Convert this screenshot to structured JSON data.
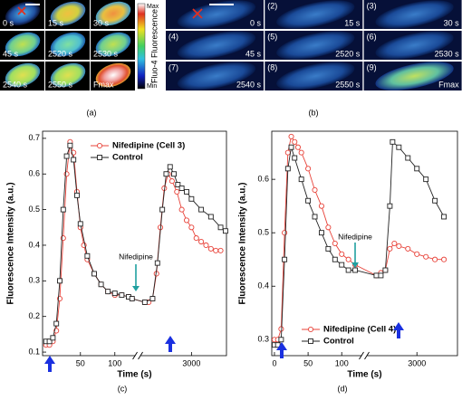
{
  "panel_a": {
    "label": "(a)",
    "frames": [
      "0 s",
      "15 s",
      "30 s",
      "45 s",
      "2520 s",
      "2530 s",
      "2540 s",
      "2550 s",
      "Fmax"
    ],
    "colorbar": {
      "max": "Max",
      "min": "Min",
      "title": "Fluo-4 Fluorescence"
    }
  },
  "panel_b": {
    "label": "(b)",
    "frames": [
      {
        "time": "0 s"
      },
      {
        "index": "(2)",
        "time": "15 s"
      },
      {
        "index": "(3)",
        "time": "30 s"
      },
      {
        "index": "(4)",
        "time": "45 s"
      },
      {
        "index": "(5)",
        "time": "2520 s"
      },
      {
        "index": "(6)",
        "time": "2530 s"
      },
      {
        "index": "(7)",
        "time": "2540 s"
      },
      {
        "index": "(8)",
        "time": "2550 s"
      },
      {
        "index": "(9)",
        "time": "Fmax"
      }
    ]
  },
  "chart_data": [
    {
      "type": "line",
      "panel_label": "(c)",
      "x_label": "Time (s)",
      "y_label": "Fluorescence Intensity (a.u.)",
      "xlim": [
        -5,
        3360
      ],
      "xbreak": [
        130,
        2480
      ],
      "xticks": [
        50,
        100,
        3000
      ],
      "ylim": [
        0.09,
        0.72
      ],
      "yticks": [
        0.1,
        0.2,
        0.3,
        0.4,
        0.5,
        0.6,
        0.7
      ],
      "annotation": "Nifedipine",
      "legend": "upper center",
      "series": [
        {
          "name": "Nifedipine (Cell 3)",
          "color": "#e8433a",
          "marker": "circle",
          "x": [
            0,
            5,
            10,
            15,
            20,
            25,
            30,
            35,
            40,
            45,
            50,
            55,
            60,
            70,
            80,
            90,
            100,
            110,
            120,
            125,
            2520,
            2560,
            2600,
            2640,
            2680,
            2720,
            2760,
            2800,
            2850,
            2900,
            2950,
            3000,
            3050,
            3100,
            3150,
            3200,
            3250,
            3300
          ],
          "values": [
            0.12,
            0.12,
            0.13,
            0.16,
            0.25,
            0.42,
            0.6,
            0.69,
            0.66,
            0.55,
            0.45,
            0.4,
            0.36,
            0.32,
            0.29,
            0.27,
            0.26,
            0.26,
            0.255,
            0.25,
            0.24,
            0.24,
            0.25,
            0.32,
            0.45,
            0.56,
            0.6,
            0.58,
            0.55,
            0.5,
            0.47,
            0.45,
            0.42,
            0.41,
            0.4,
            0.39,
            0.385,
            0.385
          ]
        },
        {
          "name": "Control",
          "color": "#222222",
          "marker": "square",
          "x": [
            0,
            5,
            10,
            15,
            20,
            25,
            30,
            35,
            40,
            45,
            50,
            60,
            70,
            80,
            90,
            100,
            110,
            120,
            125,
            2520,
            2600,
            2650,
            2700,
            2740,
            2780,
            2820,
            2860,
            2900,
            2950,
            3000,
            3100,
            3200,
            3300,
            3350
          ],
          "values": [
            0.13,
            0.13,
            0.14,
            0.18,
            0.3,
            0.5,
            0.65,
            0.68,
            0.64,
            0.54,
            0.46,
            0.37,
            0.32,
            0.29,
            0.27,
            0.265,
            0.26,
            0.255,
            0.25,
            0.24,
            0.25,
            0.35,
            0.5,
            0.6,
            0.62,
            0.6,
            0.57,
            0.56,
            0.55,
            0.53,
            0.5,
            0.48,
            0.45,
            0.44
          ]
        }
      ]
    },
    {
      "type": "line",
      "panel_label": "(d)",
      "x_label": "Time (s)",
      "y_label": "Fluorescence Intensity (a.u.)",
      "xlim": [
        -4,
        3450
      ],
      "xbreak": [
        130,
        2450
      ],
      "xticks": [
        0,
        50,
        100,
        3000
      ],
      "ylim": [
        0.27,
        0.69
      ],
      "yticks": [
        0.3,
        0.4,
        0.5,
        0.6
      ],
      "annotation": "Nifedipine",
      "legend": "lower center",
      "series": [
        {
          "name": "Nifedipine (Cell 4)",
          "color": "#e8433a",
          "marker": "circle",
          "x": [
            0,
            5,
            10,
            15,
            20,
            25,
            30,
            35,
            40,
            50,
            60,
            70,
            80,
            90,
            100,
            110,
            120,
            2550,
            2600,
            2650,
            2700,
            2750,
            2800,
            2900,
            3000,
            3100,
            3200,
            3300
          ],
          "values": [
            0.3,
            0.3,
            0.32,
            0.5,
            0.65,
            0.68,
            0.67,
            0.66,
            0.65,
            0.62,
            0.58,
            0.55,
            0.51,
            0.48,
            0.46,
            0.45,
            0.44,
            0.42,
            0.425,
            0.43,
            0.47,
            0.48,
            0.475,
            0.47,
            0.46,
            0.455,
            0.45,
            0.45
          ]
        },
        {
          "name": "Control",
          "color": "#222222",
          "marker": "square",
          "x": [
            0,
            5,
            10,
            15,
            20,
            25,
            30,
            40,
            50,
            60,
            70,
            80,
            90,
            100,
            110,
            120,
            2550,
            2600,
            2650,
            2700,
            2730,
            2800,
            2900,
            3000,
            3100,
            3200,
            3300
          ],
          "values": [
            0.29,
            0.29,
            0.3,
            0.45,
            0.62,
            0.66,
            0.64,
            0.6,
            0.56,
            0.53,
            0.5,
            0.47,
            0.45,
            0.44,
            0.43,
            0.43,
            0.42,
            0.42,
            0.43,
            0.55,
            0.67,
            0.66,
            0.64,
            0.62,
            0.6,
            0.56,
            0.53
          ]
        }
      ]
    }
  ]
}
